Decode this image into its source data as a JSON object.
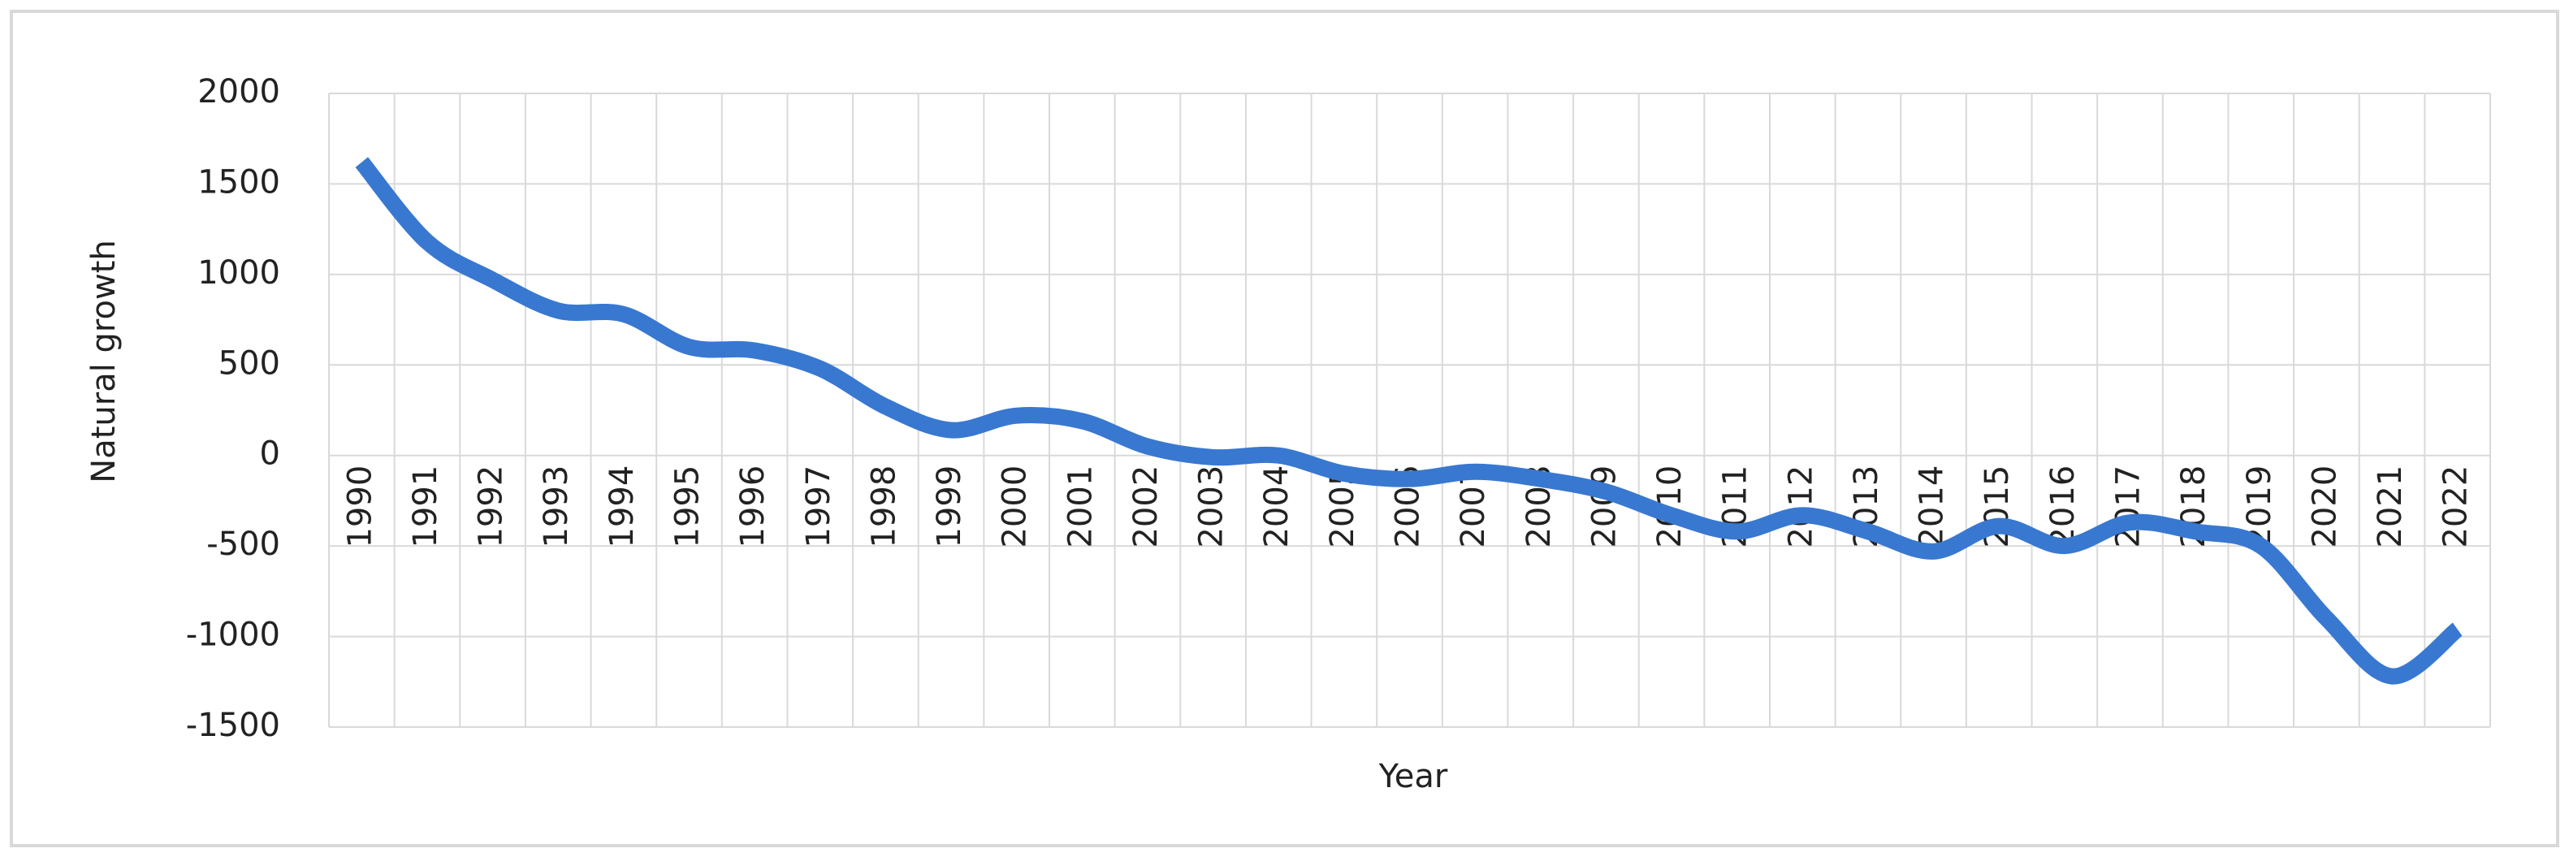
{
  "chart_data": {
    "type": "line",
    "x_label": "Year",
    "y_label": "Natural growth",
    "categories": [
      "1990",
      "1991",
      "1992",
      "1993",
      "1994",
      "1995",
      "1996",
      "1997",
      "1998",
      "1999",
      "2000",
      "2001",
      "2002",
      "2003",
      "2004",
      "2005",
      "2006",
      "2007",
      "2008",
      "2009",
      "2010",
      "2011",
      "2012",
      "2013",
      "2014",
      "2015",
      "2016",
      "2017",
      "2018",
      "2019",
      "2020",
      "2021",
      "2022"
    ],
    "series": [
      {
        "name": "Natural growth",
        "color": "#3878d0",
        "values": [
          1620,
          1180,
          970,
          800,
          780,
          600,
          580,
          480,
          270,
          140,
          220,
          190,
          50,
          -10,
          0,
          -100,
          -130,
          -90,
          -130,
          -200,
          -330,
          -420,
          -330,
          -420,
          -530,
          -390,
          -500,
          -370,
          -420,
          -500,
          -900,
          -1220,
          -960
        ]
      }
    ],
    "ylim": [
      -1500,
      2000
    ],
    "yticks": [
      -1500,
      -1000,
      -500,
      0,
      500,
      1000,
      1500,
      2000
    ],
    "grid": true
  }
}
